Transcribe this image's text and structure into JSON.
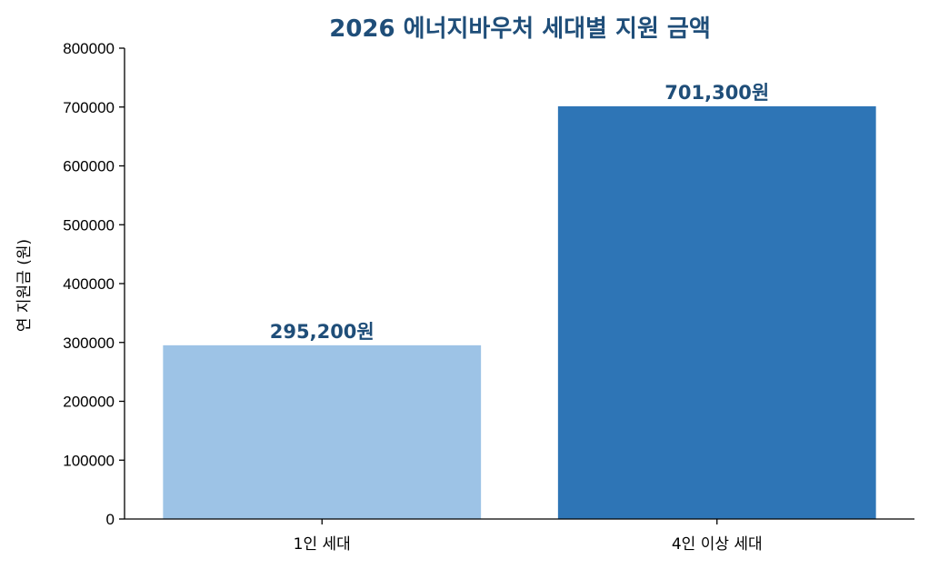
{
  "chart_data": {
    "type": "bar",
    "title": "2026 에너지바우처 세대별 지원 금액",
    "xlabel": "",
    "ylabel": "연 지원금 (원)",
    "categories": [
      "1인 세대",
      "4인 이상 세대"
    ],
    "values": [
      295200,
      701300
    ],
    "data_labels": [
      "295,200원",
      "701,300원"
    ],
    "ylim": [
      0,
      800000
    ],
    "yticks": [
      0,
      100000,
      200000,
      300000,
      400000,
      500000,
      600000,
      700000,
      800000
    ],
    "ytick_labels": [
      "0",
      "100000",
      "200000",
      "300000",
      "400000",
      "500000",
      "600000",
      "700000",
      "800000"
    ],
    "grid": false,
    "legend": "none",
    "colors": {
      "bars": [
        "#9dc3e6",
        "#2e75b6"
      ],
      "title": "#1f4e79",
      "data_label": "#1f4e79"
    }
  }
}
